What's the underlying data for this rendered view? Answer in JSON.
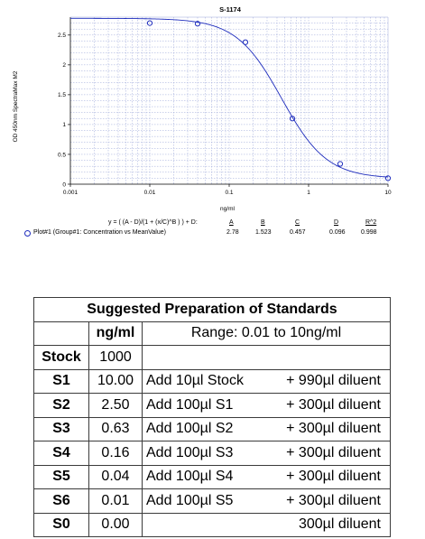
{
  "chart_data": {
    "type": "scatter",
    "title": "S-1174",
    "xlabel": "ng/ml",
    "ylabel": "OD 450nm SpectraMax M2",
    "x_scale": "log",
    "xlim": [
      0.001,
      10
    ],
    "ylim": [
      0,
      2.8
    ],
    "x_ticks": [
      "0.001",
      "0.01",
      "0.1",
      "1",
      "10"
    ],
    "y_ticks": [
      "0",
      "0.5",
      "1",
      "1.5",
      "2",
      "2.5"
    ],
    "grid": true,
    "series": [
      {
        "name": "Plot#1 (Group#1: Concentration vs MeanValue)",
        "color": "#1f2dbd",
        "points": [
          {
            "x": 0.01,
            "y": 2.7
          },
          {
            "x": 0.04,
            "y": 2.69
          },
          {
            "x": 0.16,
            "y": 2.38
          },
          {
            "x": 0.625,
            "y": 1.1
          },
          {
            "x": 2.5,
            "y": 0.34
          },
          {
            "x": 10,
            "y": 0.1
          }
        ],
        "fit": {
          "A": 2.78,
          "B": 1.523,
          "C": 0.457,
          "D": 0.096,
          "R2": 0.998
        }
      }
    ]
  },
  "fit_info": {
    "equation": "y = ( (A - D)/(1 + (x/C)^B ) ) + D:",
    "headers": {
      "A": "A",
      "B": "B",
      "C": "C",
      "D": "D",
      "R2": "R^2"
    },
    "plot_label": "Plot#1 (Group#1: Concentration vs MeanValue)",
    "values": {
      "A": "2.78",
      "B": "1.523",
      "C": "0.457",
      "D": "0.096",
      "R2": "0.998"
    }
  },
  "prep_table": {
    "title": "Suggested Preparation of Standards",
    "conc_header": "ng/ml",
    "range": "Range: 0.01 to 10ng/ml",
    "rows": [
      {
        "label": "Stock",
        "conc": "1000",
        "action": "",
        "diluent": ""
      },
      {
        "label": "S1",
        "conc": "10.00",
        "action": "Add   10µl Stock",
        "diluent": "+ 990µl diluent"
      },
      {
        "label": "S2",
        "conc": "2.50",
        "action": "Add 100µl S1",
        "diluent": "+ 300µl diluent"
      },
      {
        "label": "S3",
        "conc": "0.63",
        "action": "Add 100µl S2",
        "diluent": "+ 300µl diluent"
      },
      {
        "label": "S4",
        "conc": "0.16",
        "action": "Add 100µl S3",
        "diluent": "+ 300µl diluent"
      },
      {
        "label": "S5",
        "conc": "0.04",
        "action": "Add 100µl S4",
        "diluent": "+ 300µl diluent"
      },
      {
        "label": "S6",
        "conc": "0.01",
        "action": "Add 100µl S5",
        "diluent": "+ 300µl diluent"
      },
      {
        "label": "S0",
        "conc": "0.00",
        "action": "",
        "diluent": "300µl diluent"
      }
    ]
  }
}
